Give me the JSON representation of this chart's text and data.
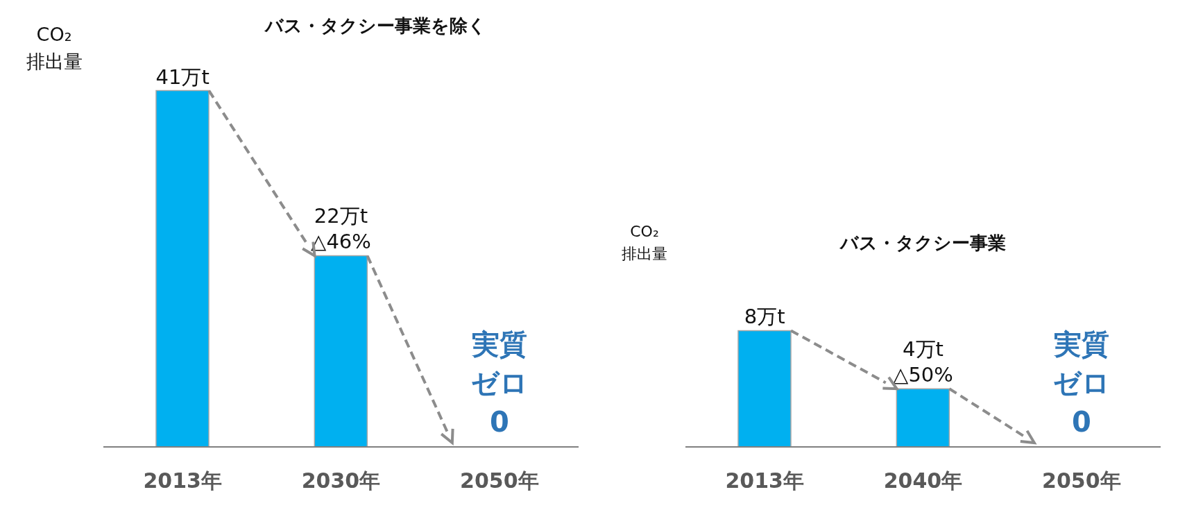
{
  "chart_data": [
    {
      "type": "bar",
      "title": "バス・タクシー事業を除く",
      "ylabel": "CO₂\n排出量",
      "categories": [
        "2013年",
        "2030年",
        "2050年"
      ],
      "values": [
        41,
        22,
        0
      ],
      "color": "#00b0f0",
      "value_labels": [
        "41万t",
        "22万t\n△46%",
        "実質ゼロ\n0"
      ]
    },
    {
      "type": "bar",
      "title": "バス・タクシー事業",
      "ylabel": "CO₂\n排出量",
      "categories": [
        "2013年",
        "2040年",
        "2050年"
      ],
      "values": [
        8,
        4,
        0
      ],
      "color": "#00b0f0",
      "value_labels": [
        "8万t",
        "4万t\n△50%",
        "実質ゼロ\n0"
      ]
    }
  ]
}
